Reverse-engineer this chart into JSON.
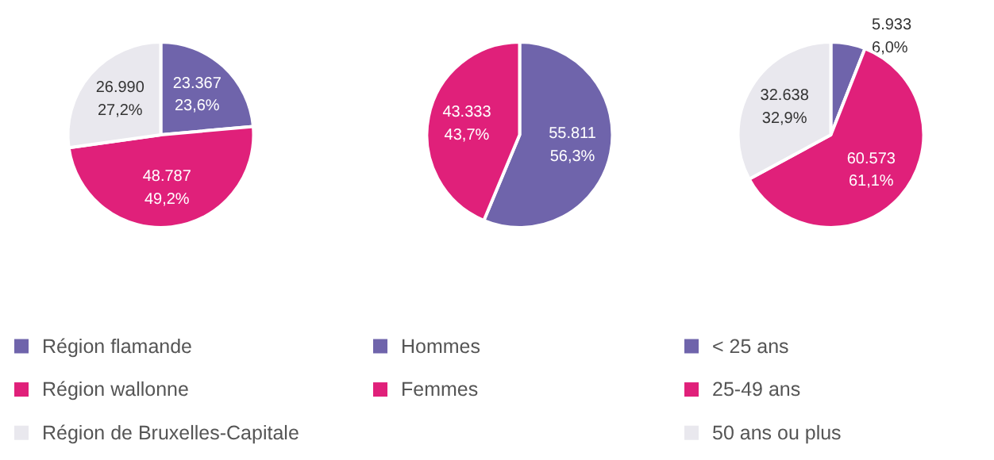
{
  "chart_data": [
    {
      "type": "pie",
      "categories": [
        "Région flamande",
        "Région wallonne",
        "Région de Bruxelles-Capitale"
      ],
      "values": [
        23367,
        48787,
        26990
      ],
      "colors": [
        "#6f64ab",
        "#e0207a",
        "#e9e8ee"
      ],
      "value_labels": [
        "23.367\n23,6%",
        "48.787\n49,2%",
        "26.990\n27,2%"
      ],
      "legend": "bottom"
    },
    {
      "type": "pie",
      "categories": [
        "Hommes",
        "Femmes"
      ],
      "values": [
        55811,
        43333
      ],
      "colors": [
        "#6f64ab",
        "#e0207a"
      ],
      "value_labels": [
        "55.811\n56,3%",
        "43.333\n43,7%"
      ],
      "legend": "bottom"
    },
    {
      "type": "pie",
      "categories": [
        "< 25 ans",
        "25-49 ans",
        "50 ans ou plus"
      ],
      "values": [
        5933,
        60573,
        32638
      ],
      "colors": [
        "#6f64ab",
        "#e0207a",
        "#e9e8ee"
      ],
      "value_labels": [
        "5.933\n6,0%",
        "60.573\n61,1%",
        "32.638\n32,9%"
      ],
      "legend": "bottom"
    }
  ]
}
